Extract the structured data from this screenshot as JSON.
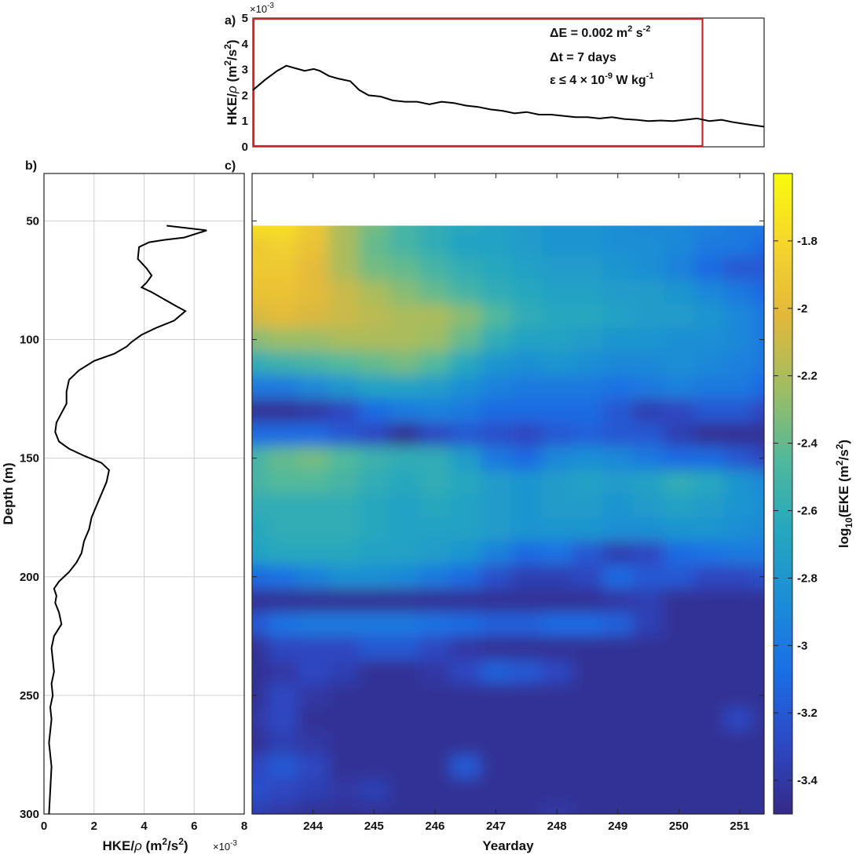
{
  "chart_data": [
    {
      "panel": "a)",
      "type": "line",
      "ylabel_html": "HKE/ρ (m²/s²)",
      "ylabel_main": "HKE/",
      "ylabel_rho": "ρ",
      "ylabel_units": "(m",
      "ylabel_units2": "/s",
      "ylabel_close": ")",
      "ylabel_sup": "2",
      "y_multiplier": "×10",
      "y_multiplier_exp": "-3",
      "xlim": [
        243.0,
        251.4
      ],
      "ylim": [
        0,
        5
      ],
      "yticks": [
        "0",
        "1",
        "2",
        "3",
        "4",
        "5"
      ],
      "grid": false,
      "x": [
        243.0,
        243.2,
        243.4,
        243.55,
        243.7,
        243.85,
        244.0,
        244.1,
        244.25,
        244.4,
        244.6,
        244.75,
        244.9,
        245.1,
        245.3,
        245.5,
        245.7,
        245.9,
        246.1,
        246.3,
        246.5,
        246.7,
        246.9,
        247.1,
        247.3,
        247.5,
        247.7,
        247.9,
        248.1,
        248.3,
        248.5,
        248.7,
        248.9,
        249.1,
        249.3,
        249.5,
        249.7,
        249.9,
        250.1,
        250.3,
        250.5,
        250.7,
        250.9,
        251.1,
        251.4
      ],
      "y": [
        2.2,
        2.6,
        2.95,
        3.15,
        3.05,
        2.95,
        3.02,
        2.95,
        2.75,
        2.65,
        2.55,
        2.2,
        2.0,
        1.95,
        1.8,
        1.75,
        1.75,
        1.65,
        1.75,
        1.7,
        1.6,
        1.55,
        1.45,
        1.4,
        1.3,
        1.35,
        1.25,
        1.25,
        1.2,
        1.15,
        1.15,
        1.1,
        1.15,
        1.08,
        1.05,
        1.0,
        1.02,
        1.0,
        1.05,
        1.1,
        1.0,
        1.05,
        0.95,
        0.88,
        0.78
      ],
      "highlight_box": {
        "x": [
          243.0,
          250.4
        ],
        "y": [
          0,
          5
        ],
        "color": "#d32020"
      },
      "line_color": "#000000",
      "annotations": [
        {
          "prefix": "ΔE = 0.002 m",
          "sup": "2",
          "mid": " s",
          "sup2": "-2"
        },
        {
          "prefix": "Δt = 7 days"
        },
        {
          "prefix": "ε ≤ 4 × 10",
          "sup": "-9",
          "mid": " W kg",
          "sup2": "-1"
        }
      ]
    },
    {
      "panel": "b)",
      "type": "line",
      "ylabel": "Depth (m)",
      "xlabel_main": "HKE/",
      "xlabel_rho": "ρ",
      "xlabel_units": "(m",
      "xlabel_units2": "/s",
      "xlabel_close": ")",
      "xlabel_sup": "2",
      "x_multiplier": "×10",
      "x_multiplier_exp": "-3",
      "xlim": [
        0,
        8
      ],
      "ylim": [
        30,
        300
      ],
      "y_reversed": true,
      "xticks": [
        "0",
        "2",
        "4",
        "6",
        "8"
      ],
      "yticks": [
        "50",
        "100",
        "150",
        "200",
        "250",
        "300"
      ],
      "grid": true,
      "line_color": "#000000",
      "x": [
        4.9,
        6.5,
        5.6,
        4.8,
        4.2,
        3.8,
        3.75,
        4.1,
        4.3,
        4.1,
        3.9,
        4.3,
        4.8,
        5.3,
        5.65,
        5.2,
        4.5,
        3.9,
        3.5,
        3.3,
        2.8,
        2.0,
        1.4,
        1.0,
        0.9,
        0.9,
        0.7,
        0.5,
        0.45,
        0.6,
        1.0,
        1.6,
        2.3,
        2.6,
        2.5,
        2.3,
        2.1,
        1.9,
        1.8,
        1.6,
        1.5,
        1.3,
        1.0,
        0.6,
        0.4,
        0.5,
        0.45,
        0.6,
        0.7,
        0.4,
        0.3,
        0.4,
        0.3,
        0.35,
        0.25,
        0.3,
        0.2,
        0.3,
        0.25,
        0.2
      ],
      "y": [
        52,
        54,
        57,
        58,
        59,
        61,
        66,
        70,
        73,
        76,
        78,
        80,
        83,
        86,
        88,
        92,
        95,
        98,
        101,
        103,
        106,
        109,
        113,
        117,
        122,
        127,
        131,
        135,
        139,
        143,
        146,
        149,
        152,
        155,
        160,
        165,
        170,
        175,
        180,
        185,
        190,
        194,
        198,
        202,
        205,
        208,
        211,
        215,
        220,
        225,
        230,
        240,
        245,
        250,
        255,
        260,
        270,
        280,
        290,
        300
      ]
    },
    {
      "panel": "c)",
      "type": "heatmap",
      "xlabel": "Yearday",
      "xlim": [
        243.0,
        251.4
      ],
      "ylim": [
        30,
        300
      ],
      "y_reversed": true,
      "xticks": [
        "244",
        "245",
        "246",
        "247",
        "248",
        "249",
        "250",
        "251"
      ],
      "data_depth_range": [
        52,
        300
      ],
      "colormap": "parula",
      "colorbar": {
        "label_prefix": "log",
        "label_sub": "10",
        "label_mid": "(EKE (m",
        "label_sup": "2",
        "label_mid2": "/s",
        "label_sup2": "2",
        "label_end": ")",
        "range": [
          -3.5,
          -1.6
        ],
        "ticks": [
          "-1.8",
          "-2",
          "-2.2",
          "-2.4",
          "-2.6",
          "-2.8",
          "-3",
          "-3.2",
          "-3.4"
        ],
        "colors": [
          "#352a87",
          "#2d49c4",
          "#1a6ee5",
          "#1c8dd6",
          "#26a7bf",
          "#52b99a",
          "#a1bd62",
          "#e2b83b",
          "#f6d52d",
          "#f9fb0e"
        ]
      },
      "depths": [
        52,
        60,
        70,
        80,
        90,
        100,
        110,
        120,
        130,
        140,
        150,
        160,
        170,
        180,
        190,
        200,
        210,
        220,
        230,
        240,
        250,
        260,
        270,
        280,
        290,
        300
      ],
      "days": [
        243.0,
        243.5,
        244.0,
        244.5,
        245.0,
        245.5,
        246.0,
        246.5,
        247.0,
        247.5,
        248.0,
        248.5,
        249.0,
        249.5,
        250.0,
        250.5,
        251.0,
        251.4
      ],
      "values": [
        [
          -1.75,
          -1.75,
          -1.9,
          -2.2,
          -2.35,
          -2.5,
          -2.6,
          -2.65,
          -2.7,
          -2.75,
          -2.8,
          -2.8,
          -2.85,
          -2.9,
          -2.9,
          -2.95,
          -3.0,
          -3.0
        ],
        [
          -1.9,
          -1.85,
          -1.95,
          -2.2,
          -2.4,
          -2.5,
          -2.6,
          -2.7,
          -2.7,
          -2.75,
          -2.8,
          -2.8,
          -2.85,
          -2.85,
          -2.9,
          -3.0,
          -3.0,
          -3.1
        ],
        [
          -1.9,
          -1.9,
          -2.0,
          -2.2,
          -2.35,
          -2.4,
          -2.5,
          -2.6,
          -2.65,
          -2.7,
          -2.75,
          -2.75,
          -2.8,
          -2.85,
          -2.95,
          -3.1,
          -3.2,
          -3.2
        ],
        [
          -1.95,
          -1.95,
          -2.0,
          -2.1,
          -2.2,
          -2.3,
          -2.4,
          -2.5,
          -2.6,
          -2.65,
          -2.7,
          -2.7,
          -2.75,
          -2.75,
          -2.8,
          -2.9,
          -3.0,
          -3.1
        ],
        [
          -2.05,
          -2.0,
          -2.05,
          -2.1,
          -2.15,
          -2.2,
          -2.2,
          -2.3,
          -2.45,
          -2.6,
          -2.65,
          -2.65,
          -2.7,
          -2.75,
          -2.75,
          -2.8,
          -2.9,
          -3.0
        ],
        [
          -2.3,
          -2.25,
          -2.25,
          -2.2,
          -2.2,
          -2.2,
          -2.25,
          -2.4,
          -2.6,
          -2.7,
          -2.7,
          -2.75,
          -2.8,
          -2.8,
          -2.85,
          -2.85,
          -2.9,
          -3.0
        ],
        [
          -2.6,
          -2.55,
          -2.5,
          -2.45,
          -2.4,
          -2.35,
          -2.45,
          -2.65,
          -2.8,
          -2.85,
          -2.8,
          -2.85,
          -2.9,
          -2.9,
          -2.85,
          -2.9,
          -2.95,
          -3.0
        ],
        [
          -3.0,
          -3.0,
          -2.9,
          -2.8,
          -2.7,
          -2.7,
          -2.75,
          -2.85,
          -2.95,
          -3.0,
          -3.0,
          -3.0,
          -3.05,
          -3.0,
          -2.95,
          -3.0,
          -3.0,
          -3.1
        ],
        [
          -3.45,
          -3.45,
          -3.4,
          -3.3,
          -3.1,
          -3.0,
          -2.95,
          -3.0,
          -3.1,
          -3.1,
          -3.1,
          -3.1,
          -3.2,
          -3.35,
          -3.3,
          -3.2,
          -3.2,
          -3.3
        ],
        [
          -3.1,
          -3.1,
          -3.1,
          -3.2,
          -3.3,
          -3.45,
          -3.3,
          -3.2,
          -3.25,
          -3.3,
          -3.2,
          -3.15,
          -3.2,
          -3.2,
          -3.35,
          -3.45,
          -3.45,
          -3.45
        ],
        [
          -2.5,
          -2.4,
          -2.35,
          -2.45,
          -2.55,
          -2.6,
          -2.6,
          -2.75,
          -3.0,
          -3.1,
          -2.9,
          -2.85,
          -2.9,
          -3.0,
          -3.1,
          -3.1,
          -3.2,
          -3.3
        ],
        [
          -2.5,
          -2.45,
          -2.45,
          -2.5,
          -2.6,
          -2.65,
          -2.6,
          -2.65,
          -2.75,
          -2.8,
          -2.75,
          -2.7,
          -2.75,
          -2.7,
          -2.6,
          -2.65,
          -2.8,
          -2.9
        ],
        [
          -2.6,
          -2.6,
          -2.6,
          -2.6,
          -2.65,
          -2.7,
          -2.65,
          -2.7,
          -2.75,
          -2.8,
          -2.75,
          -2.75,
          -2.8,
          -2.75,
          -2.7,
          -2.75,
          -2.8,
          -2.85
        ],
        [
          -2.65,
          -2.6,
          -2.6,
          -2.6,
          -2.65,
          -2.7,
          -2.7,
          -2.7,
          -2.75,
          -2.8,
          -2.8,
          -2.8,
          -2.85,
          -2.85,
          -2.8,
          -2.8,
          -2.85,
          -2.9
        ],
        [
          -2.7,
          -2.65,
          -2.65,
          -2.65,
          -2.7,
          -2.7,
          -2.75,
          -2.8,
          -2.95,
          -3.1,
          -3.05,
          -3.2,
          -3.35,
          -3.3,
          -3.1,
          -3.05,
          -3.0,
          -3.0
        ],
        [
          -3.1,
          -3.05,
          -2.95,
          -2.85,
          -2.85,
          -2.9,
          -3.0,
          -3.1,
          -3.25,
          -3.35,
          -3.35,
          -3.3,
          -3.1,
          -3.2,
          -3.2,
          -3.3,
          -3.3,
          -3.25
        ],
        [
          -3.45,
          -3.45,
          -3.45,
          -3.45,
          -3.45,
          -3.45,
          -3.45,
          -3.45,
          -3.45,
          -3.45,
          -3.45,
          -3.45,
          -3.4,
          -3.35,
          -3.45,
          -3.45,
          -3.45,
          -3.45
        ],
        [
          -3.2,
          -3.05,
          -3.0,
          -3.0,
          -3.0,
          -3.0,
          -3.05,
          -3.1,
          -3.15,
          -3.15,
          -3.1,
          -3.1,
          -3.15,
          -3.35,
          -3.45,
          -3.45,
          -3.45,
          -3.45
        ],
        [
          -3.45,
          -3.3,
          -3.3,
          -3.3,
          -3.2,
          -3.2,
          -3.3,
          -3.4,
          -3.45,
          -3.45,
          -3.45,
          -3.45,
          -3.45,
          -3.45,
          -3.45,
          -3.45,
          -3.45,
          -3.45
        ],
        [
          -3.45,
          -3.4,
          -3.3,
          -3.35,
          -3.45,
          -3.45,
          -3.4,
          -3.3,
          -3.15,
          -3.2,
          -3.3,
          -3.45,
          -3.45,
          -3.45,
          -3.45,
          -3.45,
          -3.45,
          -3.45
        ],
        [
          -3.45,
          -3.3,
          -3.4,
          -3.45,
          -3.45,
          -3.45,
          -3.45,
          -3.45,
          -3.45,
          -3.45,
          -3.45,
          -3.45,
          -3.45,
          -3.45,
          -3.45,
          -3.45,
          -3.45,
          -3.45
        ],
        [
          -3.4,
          -3.3,
          -3.45,
          -3.45,
          -3.45,
          -3.45,
          -3.45,
          -3.45,
          -3.45,
          -3.45,
          -3.45,
          -3.45,
          -3.45,
          -3.45,
          -3.45,
          -3.45,
          -3.3,
          -3.45
        ],
        [
          -3.45,
          -3.35,
          -3.4,
          -3.45,
          -3.45,
          -3.45,
          -3.45,
          -3.45,
          -3.45,
          -3.45,
          -3.45,
          -3.45,
          -3.45,
          -3.45,
          -3.45,
          -3.45,
          -3.45,
          -3.45
        ],
        [
          -3.3,
          -3.2,
          -3.3,
          -3.45,
          -3.45,
          -3.45,
          -3.45,
          -3.2,
          -3.45,
          -3.45,
          -3.45,
          -3.45,
          -3.45,
          -3.45,
          -3.45,
          -3.45,
          -3.45,
          -3.45
        ],
        [
          -3.25,
          -3.3,
          -3.35,
          -3.4,
          -3.35,
          -3.45,
          -3.45,
          -3.45,
          -3.45,
          -3.45,
          -3.45,
          -3.45,
          -3.45,
          -3.45,
          -3.45,
          -3.45,
          -3.45,
          -3.45
        ],
        [
          -3.35,
          -3.4,
          -3.45,
          -3.45,
          -3.45,
          -3.45,
          -3.45,
          -3.45,
          -3.45,
          -3.45,
          -3.4,
          -3.45,
          -3.45,
          -3.45,
          -3.45,
          -3.45,
          -3.45,
          -3.45
        ]
      ]
    }
  ]
}
